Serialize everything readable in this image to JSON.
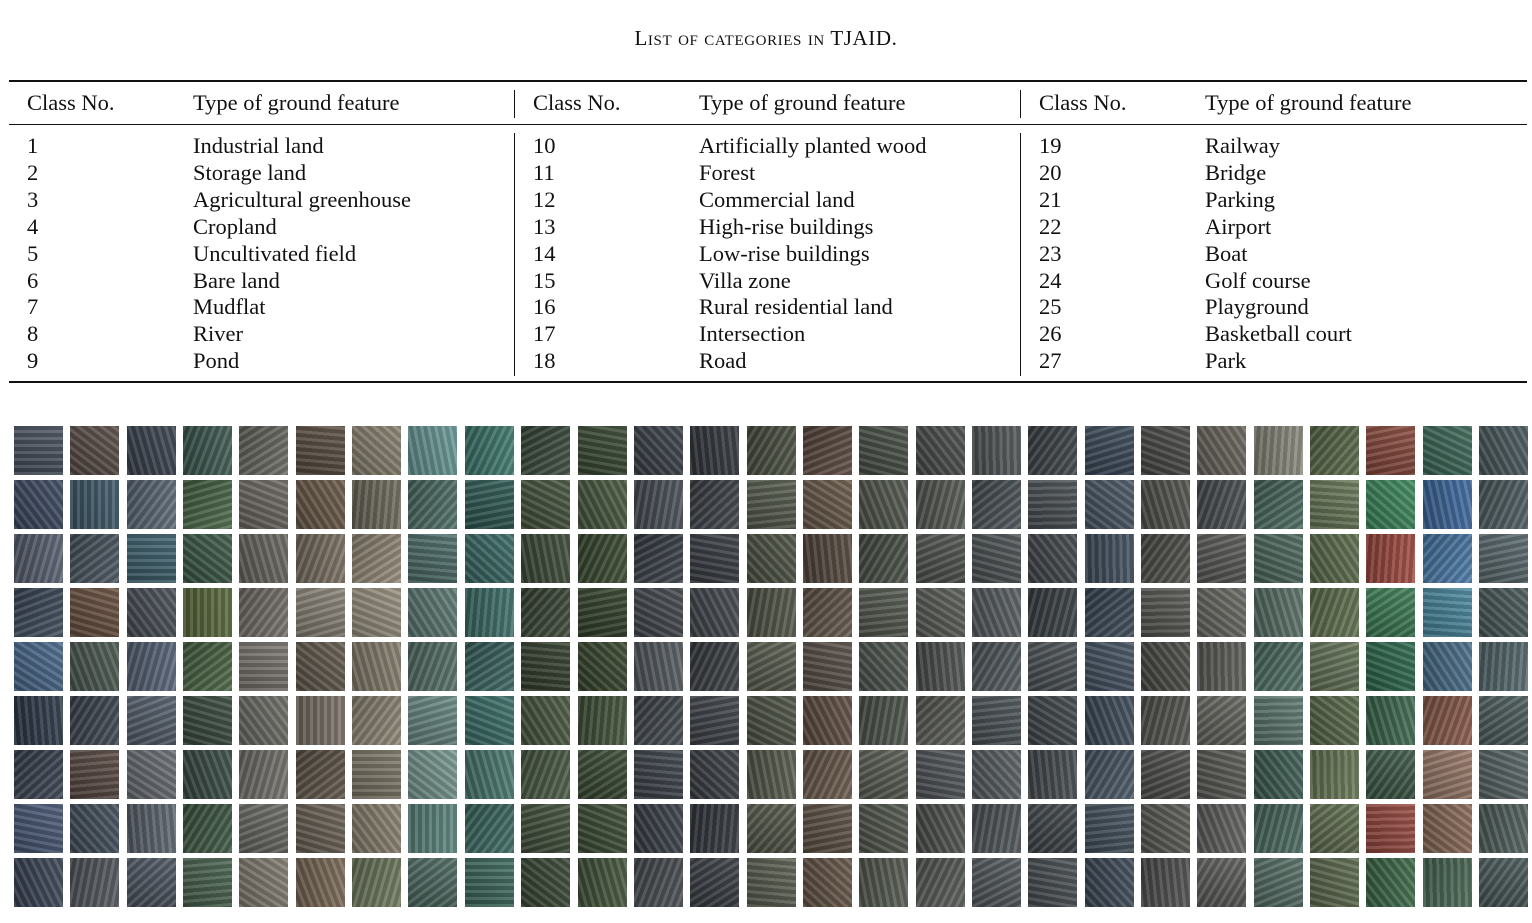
{
  "caption": "List of categories in TJAID.",
  "table": {
    "headers": [
      {
        "class_no": "Class No.",
        "type": "Type of ground feature"
      },
      {
        "class_no": "Class No.",
        "type": "Type of ground feature"
      },
      {
        "class_no": "Class No.",
        "type": "Type of ground feature"
      }
    ],
    "columns": [
      [
        {
          "no": "1",
          "type": "Industrial land"
        },
        {
          "no": "2",
          "type": "Storage land"
        },
        {
          "no": "3",
          "type": "Agricultural greenhouse"
        },
        {
          "no": "4",
          "type": "Cropland"
        },
        {
          "no": "5",
          "type": "Uncultivated field"
        },
        {
          "no": "6",
          "type": "Bare land"
        },
        {
          "no": "7",
          "type": "Mudflat"
        },
        {
          "no": "8",
          "type": "River"
        },
        {
          "no": "9",
          "type": "Pond"
        }
      ],
      [
        {
          "no": "10",
          "type": "Artificially planted wood"
        },
        {
          "no": "11",
          "type": "Forest"
        },
        {
          "no": "12",
          "type": "Commercial land"
        },
        {
          "no": "13",
          "type": "High-rise buildings"
        },
        {
          "no": "14",
          "type": "Low-rise buildings"
        },
        {
          "no": "15",
          "type": "Villa zone"
        },
        {
          "no": "16",
          "type": "Rural residential land"
        },
        {
          "no": "17",
          "type": "Intersection"
        },
        {
          "no": "18",
          "type": "Road"
        }
      ],
      [
        {
          "no": "19",
          "type": "Railway"
        },
        {
          "no": "20",
          "type": "Bridge"
        },
        {
          "no": "21",
          "type": "Parking"
        },
        {
          "no": "22",
          "type": "Airport"
        },
        {
          "no": "23",
          "type": "Boat"
        },
        {
          "no": "24",
          "type": "Golf course"
        },
        {
          "no": "25",
          "type": "Playground"
        },
        {
          "no": "26",
          "type": "Basketball court"
        },
        {
          "no": "27",
          "type": "Park"
        }
      ]
    ]
  },
  "image_grid": {
    "rows": 9,
    "columns": 27,
    "column_colors": [
      [
        "#4a5360",
        "#3d4a62",
        "#5a6272",
        "#3e4b5c",
        "#4b6a8e",
        "#2e3a4a",
        "#3a4250",
        "#4a5a78",
        "#3c4658"
      ],
      [
        "#5a4e48",
        "#3f5a6a",
        "#4a5560",
        "#6a5040",
        "#4d5a52",
        "#3e4650",
        "#5a4a44",
        "#43505c",
        "#54585e"
      ],
      [
        "#3c4450",
        "#5c6a78",
        "#3f6270",
        "#4a5058",
        "#586478",
        "#56606e",
        "#6a6e74",
        "#5e6670",
        "#4e5662"
      ],
      [
        "#3e5a52",
        "#4a6848",
        "#3c5a48",
        "#5a6a3c",
        "#4a6444",
        "#3a4c40",
        "#3a4c46",
        "#3e5844",
        "#4a6450"
      ],
      [
        "#6a6a62",
        "#6e6a64",
        "#6a6860",
        "#74706a",
        "#7a7670",
        "#6e6e68",
        "#74726c",
        "#6a6a66",
        "#847e72"
      ],
      [
        "#5a4e42",
        "#6a5a48",
        "#7a7062",
        "#8a8478",
        "#625a4e",
        "#7a7268",
        "#5e5448",
        "#6a6256",
        "#7a6a56"
      ],
      [
        "#8a8272",
        "#6e6a5c",
        "#948a78",
        "#9a9282",
        "#867e6e",
        "#8e8676",
        "#7e7868",
        "#8a8270",
        "#6e7a5e"
      ],
      [
        "#6a9a98",
        "#4e6e66",
        "#4e6e6a",
        "#5e7a74",
        "#567068",
        "#6a8a84",
        "#7a9a92",
        "#5e8880",
        "#4e6a62"
      ],
      [
        "#3e7a6e",
        "#2e5a54",
        "#3a6a66",
        "#3e706a",
        "#3a6460",
        "#3c706a",
        "#4a7a70",
        "#3c6a62",
        "#3e6a5e"
      ],
      [
        "#3a4a3c",
        "#46543e",
        "#3e4c3a",
        "#3a4636",
        "#34402e",
        "#4a5840",
        "#4a5a44",
        "#42503c",
        "#3a4836"
      ],
      [
        "#3a4a34",
        "#485a40",
        "#3a4a30",
        "#34422c",
        "#38462e",
        "#42543a",
        "#3a4a34",
        "#3e4e36",
        "#44563c"
      ],
      [
        "#3c424a",
        "#4a5058",
        "#3a4048",
        "#44484e",
        "#565c62",
        "#42484e",
        "#3e444c",
        "#3a4048",
        "#4a4e52"
      ],
      [
        "#34383e",
        "#3e4248",
        "#3a3e44",
        "#44484e",
        "#3a3e42",
        "#40444a",
        "#3c4046",
        "#34383e",
        "#3a3e44"
      ],
      [
        "#4a5042",
        "#565c4e",
        "#4e5446",
        "#525648",
        "#5a5e50",
        "#4e5446",
        "#585c4e",
        "#54584a",
        "#5c6052"
      ],
      [
        "#5a4a40",
        "#6a5a4a",
        "#54483e",
        "#62564a",
        "#5a5048",
        "#604e42",
        "#6a5a4c",
        "#5e5246",
        "#665648"
      ],
      [
        "#4a5048",
        "#52584e",
        "#485046",
        "#545a50",
        "#505650",
        "#4e544c",
        "#5a5e54",
        "#52584e",
        "#565c52"
      ],
      [
        "#4a4e4c",
        "#565a54",
        "#505450",
        "#5a5e58",
        "#4e5250",
        "#5a5c56",
        "#52565a",
        "#4e524e",
        "#585c58"
      ],
      [
        "#54585a",
        "#4a5256",
        "#4e5456",
        "#585e62",
        "#525a5e",
        "#4c5458",
        "#5a6064",
        "#50565a",
        "#545a5e"
      ],
      [
        "#3e4448",
        "#4a5054",
        "#44484c",
        "#3a4044",
        "#4c5256",
        "#42484c",
        "#464c50",
        "#40464a",
        "#4a5054"
      ],
      [
        "#3c4a5a",
        "#4a5866",
        "#425060",
        "#3a4856",
        "#465464",
        "#3e4c5a",
        "#4a5866",
        "#44525e",
        "#3e4a58"
      ],
      [
        "#4a4a48",
        "#52524e",
        "#4e4e4a",
        "#585854",
        "#4a4a46",
        "#545450",
        "#4e4e4c",
        "#5a5a56",
        "#505050"
      ],
      [
        "#6a665e",
        "#4a4e52",
        "#5a5a58",
        "#6a6a64",
        "#5e5e5a",
        "#666660",
        "#5a5a56",
        "#626260",
        "#5e5e5c"
      ],
      [
        "#8a8a7e",
        "#4a6a5e",
        "#4e6a5e",
        "#5a7268",
        "#4e6e64",
        "#5e7a70",
        "#3e5e54",
        "#4a6a60",
        "#567066"
      ],
      [
        "#5a6a4a",
        "#6a7a5a",
        "#5e6e4e",
        "#627250",
        "#66765a",
        "#5a6a4c",
        "#6a7a58",
        "#627052",
        "#5e6c50"
      ],
      [
        "#8a4a3e",
        "#3e8a5e",
        "#a04a40",
        "#3e7e56",
        "#2e6a4e",
        "#3e6a50",
        "#3e5a48",
        "#9a4a42",
        "#3e6a4a"
      ],
      [
        "#3e6a5a",
        "#3e6aa0",
        "#4a7aa8",
        "#4a8aa0",
        "#4a6e8a",
        "#8a5a4a",
        "#9a7a6a",
        "#8a6a58",
        "#4a6a56"
      ],
      [
        "#4a5a5e",
        "#4e5e62",
        "#5a6a6e",
        "#4a5a5a",
        "#566a6e",
        "#4e5e5e",
        "#5a6666",
        "#52625e",
        "#4a5a5a"
      ]
    ]
  }
}
